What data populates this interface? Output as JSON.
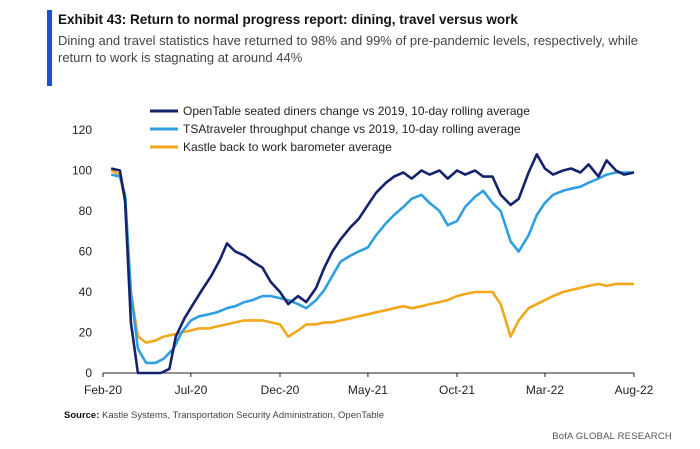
{
  "exhibit": {
    "title": "Exhibit 43: Return to normal progress report: dining, travel versus work",
    "subtitle": "Dining and travel statistics have returned to 98% and 99% of pre-pandemic levels, respectively, while return to work is stagnating at around 44%"
  },
  "footer": {
    "source_label": "Source:",
    "source_text": " Kastle Systems, Transportation Security Administration, OpenTable",
    "brand": "BofA GLOBAL RESEARCH"
  },
  "colors": {
    "accent": "#1f4fd8",
    "opentable": "#14236b",
    "tsa": "#2e9fe0",
    "kastle": "#f2a71b"
  },
  "chart_data": {
    "type": "line",
    "title": "",
    "xlabel": "",
    "ylabel": "",
    "ylim": [
      0,
      120
    ],
    "yticks": [
      0,
      20,
      40,
      60,
      80,
      100,
      120
    ],
    "xlim": [
      "2020-02",
      "2022-08"
    ],
    "xtick_labels": [
      "Feb-20",
      "Jul-20",
      "Dec-20",
      "May-21",
      "Oct-21",
      "Mar-22",
      "Aug-22"
    ],
    "xtick_dates": [
      "2020-02",
      "2020-07",
      "2020-12",
      "2021-05",
      "2021-10",
      "2022-03",
      "2022-08"
    ],
    "grid": false,
    "legend_position": "top-left",
    "series": [
      {
        "name": "OpenTable seated diners change vs 2019, 10-day rolling average",
        "color": "#14236b",
        "points": [
          [
            "2020-02-15",
            101
          ],
          [
            "2020-03-01",
            100
          ],
          [
            "2020-03-10",
            85
          ],
          [
            "2020-03-20",
            25
          ],
          [
            "2020-04-01",
            0
          ],
          [
            "2020-04-20",
            0
          ],
          [
            "2020-05-10",
            0
          ],
          [
            "2020-05-25",
            2
          ],
          [
            "2020-06-05",
            18
          ],
          [
            "2020-06-20",
            27
          ],
          [
            "2020-07-05",
            34
          ],
          [
            "2020-07-20",
            41
          ],
          [
            "2020-08-05",
            48
          ],
          [
            "2020-08-20",
            56
          ],
          [
            "2020-09-01",
            64
          ],
          [
            "2020-09-15",
            60
          ],
          [
            "2020-10-01",
            58
          ],
          [
            "2020-10-15",
            55
          ],
          [
            "2020-11-01",
            52
          ],
          [
            "2020-11-15",
            45
          ],
          [
            "2020-12-01",
            40
          ],
          [
            "2020-12-15",
            34
          ],
          [
            "2021-01-01",
            38
          ],
          [
            "2021-01-15",
            35
          ],
          [
            "2021-02-01",
            42
          ],
          [
            "2021-02-15",
            52
          ],
          [
            "2021-03-01",
            60
          ],
          [
            "2021-03-15",
            66
          ],
          [
            "2021-04-01",
            72
          ],
          [
            "2021-04-15",
            76
          ],
          [
            "2021-05-01",
            83
          ],
          [
            "2021-05-15",
            89
          ],
          [
            "2021-06-01",
            94
          ],
          [
            "2021-06-15",
            97
          ],
          [
            "2021-07-01",
            99
          ],
          [
            "2021-07-15",
            96
          ],
          [
            "2021-08-01",
            100
          ],
          [
            "2021-08-15",
            98
          ],
          [
            "2021-09-01",
            100
          ],
          [
            "2021-09-15",
            96
          ],
          [
            "2021-10-01",
            100
          ],
          [
            "2021-10-15",
            98
          ],
          [
            "2021-11-01",
            100
          ],
          [
            "2021-11-15",
            97
          ],
          [
            "2021-12-01",
            97
          ],
          [
            "2021-12-15",
            88
          ],
          [
            "2022-01-01",
            83
          ],
          [
            "2022-01-15",
            86
          ],
          [
            "2022-02-01",
            99
          ],
          [
            "2022-02-15",
            108
          ],
          [
            "2022-03-01",
            101
          ],
          [
            "2022-03-15",
            98
          ],
          [
            "2022-04-01",
            100
          ],
          [
            "2022-04-15",
            101
          ],
          [
            "2022-05-01",
            99
          ],
          [
            "2022-05-15",
            103
          ],
          [
            "2022-06-01",
            97
          ],
          [
            "2022-06-15",
            105
          ],
          [
            "2022-07-01",
            100
          ],
          [
            "2022-07-15",
            98
          ],
          [
            "2022-08-01",
            99
          ]
        ]
      },
      {
        "name": "TSAtraveler throughput  change vs 2019, 10-day rolling average",
        "color": "#2e9fe0",
        "points": [
          [
            "2020-02-15",
            98
          ],
          [
            "2020-03-01",
            97
          ],
          [
            "2020-03-10",
            88
          ],
          [
            "2020-03-20",
            40
          ],
          [
            "2020-04-01",
            12
          ],
          [
            "2020-04-15",
            5
          ],
          [
            "2020-05-01",
            5
          ],
          [
            "2020-05-15",
            7
          ],
          [
            "2020-06-01",
            12
          ],
          [
            "2020-06-15",
            20
          ],
          [
            "2020-07-01",
            26
          ],
          [
            "2020-07-15",
            28
          ],
          [
            "2020-08-01",
            29
          ],
          [
            "2020-08-15",
            30
          ],
          [
            "2020-09-01",
            32
          ],
          [
            "2020-09-15",
            33
          ],
          [
            "2020-10-01",
            35
          ],
          [
            "2020-10-15",
            36
          ],
          [
            "2020-11-01",
            38
          ],
          [
            "2020-11-15",
            38
          ],
          [
            "2020-12-01",
            37
          ],
          [
            "2020-12-15",
            36
          ],
          [
            "2021-01-01",
            34
          ],
          [
            "2021-01-15",
            32
          ],
          [
            "2021-02-01",
            36
          ],
          [
            "2021-02-15",
            41
          ],
          [
            "2021-03-01",
            48
          ],
          [
            "2021-03-15",
            55
          ],
          [
            "2021-04-01",
            58
          ],
          [
            "2021-04-15",
            60
          ],
          [
            "2021-05-01",
            62
          ],
          [
            "2021-05-15",
            68
          ],
          [
            "2021-06-01",
            74
          ],
          [
            "2021-06-15",
            78
          ],
          [
            "2021-07-01",
            82
          ],
          [
            "2021-07-15",
            86
          ],
          [
            "2021-08-01",
            88
          ],
          [
            "2021-08-15",
            84
          ],
          [
            "2021-09-01",
            80
          ],
          [
            "2021-09-15",
            73
          ],
          [
            "2021-10-01",
            75
          ],
          [
            "2021-10-15",
            82
          ],
          [
            "2021-11-01",
            87
          ],
          [
            "2021-11-15",
            90
          ],
          [
            "2021-12-01",
            84
          ],
          [
            "2021-12-15",
            80
          ],
          [
            "2022-01-01",
            65
          ],
          [
            "2022-01-15",
            60
          ],
          [
            "2022-02-01",
            68
          ],
          [
            "2022-02-15",
            78
          ],
          [
            "2022-03-01",
            84
          ],
          [
            "2022-03-15",
            88
          ],
          [
            "2022-04-01",
            90
          ],
          [
            "2022-04-15",
            91
          ],
          [
            "2022-05-01",
            92
          ],
          [
            "2022-05-15",
            94
          ],
          [
            "2022-06-01",
            96
          ],
          [
            "2022-06-15",
            98
          ],
          [
            "2022-07-01",
            99
          ],
          [
            "2022-07-15",
            99
          ],
          [
            "2022-08-01",
            99
          ]
        ]
      },
      {
        "name": "Kastle back to work barometer average",
        "color": "#f2a71b",
        "points": [
          [
            "2020-02-15",
            100
          ],
          [
            "2020-03-01",
            98
          ],
          [
            "2020-03-10",
            85
          ],
          [
            "2020-03-20",
            40
          ],
          [
            "2020-04-01",
            18
          ],
          [
            "2020-04-15",
            15
          ],
          [
            "2020-05-01",
            16
          ],
          [
            "2020-05-15",
            18
          ],
          [
            "2020-06-01",
            19
          ],
          [
            "2020-06-15",
            20
          ],
          [
            "2020-07-01",
            21
          ],
          [
            "2020-07-15",
            22
          ],
          [
            "2020-08-01",
            22
          ],
          [
            "2020-08-15",
            23
          ],
          [
            "2020-09-01",
            24
          ],
          [
            "2020-09-15",
            25
          ],
          [
            "2020-10-01",
            26
          ],
          [
            "2020-10-15",
            26
          ],
          [
            "2020-11-01",
            26
          ],
          [
            "2020-11-15",
            25
          ],
          [
            "2020-12-01",
            24
          ],
          [
            "2020-12-15",
            18
          ],
          [
            "2021-01-01",
            21
          ],
          [
            "2021-01-15",
            24
          ],
          [
            "2021-02-01",
            24
          ],
          [
            "2021-02-15",
            25
          ],
          [
            "2021-03-01",
            25
          ],
          [
            "2021-03-15",
            26
          ],
          [
            "2021-04-01",
            27
          ],
          [
            "2021-04-15",
            28
          ],
          [
            "2021-05-01",
            29
          ],
          [
            "2021-05-15",
            30
          ],
          [
            "2021-06-01",
            31
          ],
          [
            "2021-06-15",
            32
          ],
          [
            "2021-07-01",
            33
          ],
          [
            "2021-07-15",
            32
          ],
          [
            "2021-08-01",
            33
          ],
          [
            "2021-08-15",
            34
          ],
          [
            "2021-09-01",
            35
          ],
          [
            "2021-09-15",
            36
          ],
          [
            "2021-10-01",
            38
          ],
          [
            "2021-10-15",
            39
          ],
          [
            "2021-11-01",
            40
          ],
          [
            "2021-11-15",
            40
          ],
          [
            "2021-12-01",
            40
          ],
          [
            "2021-12-15",
            34
          ],
          [
            "2022-01-01",
            18
          ],
          [
            "2022-01-15",
            26
          ],
          [
            "2022-02-01",
            32
          ],
          [
            "2022-02-15",
            34
          ],
          [
            "2022-03-01",
            36
          ],
          [
            "2022-03-15",
            38
          ],
          [
            "2022-04-01",
            40
          ],
          [
            "2022-04-15",
            41
          ],
          [
            "2022-05-01",
            42
          ],
          [
            "2022-05-15",
            43
          ],
          [
            "2022-06-01",
            44
          ],
          [
            "2022-06-15",
            43
          ],
          [
            "2022-07-01",
            44
          ],
          [
            "2022-07-15",
            44
          ],
          [
            "2022-08-01",
            44
          ]
        ]
      }
    ]
  }
}
